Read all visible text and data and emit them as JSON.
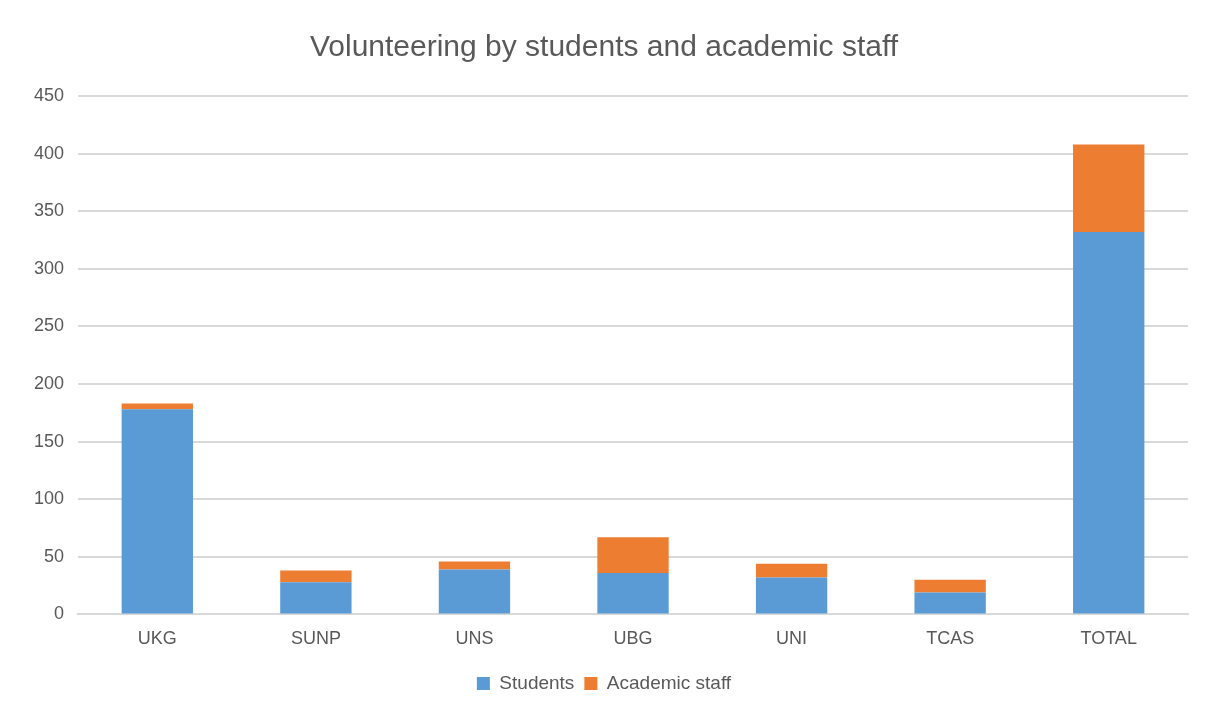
{
  "chart_data": {
    "type": "bar",
    "title": "Volunteering by students and academic staff",
    "categories": [
      "UKG",
      "SUNP",
      "UNS",
      "UBG",
      "UNI",
      "TCAS",
      "TOTAL"
    ],
    "series": [
      {
        "name": "Students",
        "color": "#5b9bd5",
        "values": [
          178,
          28,
          39,
          36,
          32,
          19,
          332
        ]
      },
      {
        "name": "Academic staff",
        "color": "#ed7d31",
        "values": [
          5,
          10,
          7,
          31,
          12,
          11,
          76
        ]
      }
    ],
    "stacked": true,
    "ylim": [
      0,
      450
    ],
    "yticks": [
      0,
      50,
      100,
      150,
      200,
      250,
      300,
      350,
      400,
      450
    ],
    "grid": "y",
    "legend": "bottom"
  }
}
